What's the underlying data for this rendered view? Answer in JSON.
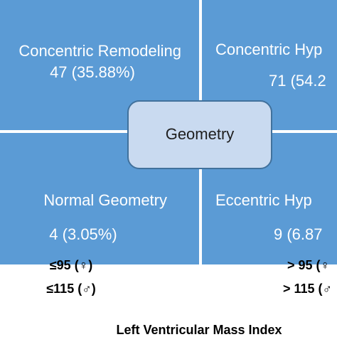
{
  "quadrants": [
    {
      "label": "Concentric Remodeling",
      "value": "47 (35.88%)"
    },
    {
      "label": "Concentric Hyp",
      "value": "71 (54.2"
    },
    {
      "label": "Normal Geometry",
      "value": "4 (3.05%)"
    },
    {
      "label": "Eccentric Hyp",
      "value": "9 (6.87"
    }
  ],
  "center": {
    "label": "Geometry"
  },
  "axis": {
    "left": [
      "≤95 (♀)",
      "≤115 (♂)"
    ],
    "right": [
      "> 95 (♀",
      "> 115 (♂"
    ],
    "title": "Left Ventricular Mass Index"
  }
}
